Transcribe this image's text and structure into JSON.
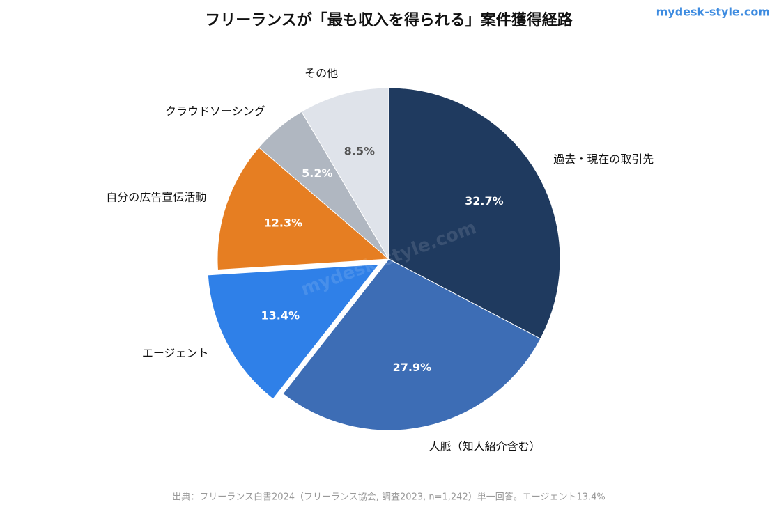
{
  "chart_data": {
    "type": "pie",
    "title": "フリーランスが「最も収入を得られる」案件獲得経路",
    "watermark": "mydesk-style.com",
    "source": "出典：フリーランス白書2024（フリーランス協会, 調査2023, n=1,242）単一回答。エージェント13.4%",
    "categories": [
      "過去・現在の取引先",
      "人脈（知人紹介含む）",
      "エージェント",
      "自分の広告宣伝活動",
      "クラウドソーシング",
      "その他"
    ],
    "values": [
      32.7,
      27.9,
      13.4,
      12.3,
      5.2,
      8.5
    ],
    "value_labels": [
      "32.7%",
      "27.9%",
      "13.4%",
      "12.3%",
      "5.2%",
      "8.5%"
    ],
    "colors": [
      "#1f3a5f",
      "#3d6db5",
      "#2f80e8",
      "#e67e22",
      "#b0b7c1",
      "#dfe3ea"
    ],
    "label_colors": [
      "#ffffff",
      "#ffffff",
      "#ffffff",
      "#ffffff",
      "#ffffff",
      "#555555"
    ],
    "exploded": [
      false,
      false,
      true,
      false,
      false,
      false
    ]
  }
}
